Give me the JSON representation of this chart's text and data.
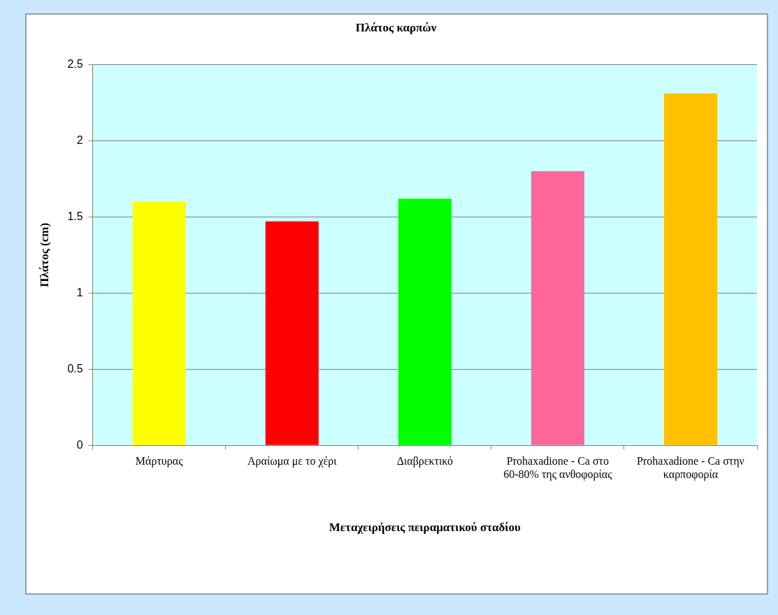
{
  "chart_data": {
    "type": "bar",
    "title": "Πλάτος καρπών",
    "xlabel": "Μεταχειρήσεις πειραματικού σταδίου",
    "ylabel": "Πλάτος (cm)",
    "categories": [
      "Μάρτυρας",
      "Αραίωμα με το χέρι",
      "Διαβρεκτικό",
      "Prohaxadione - Ca στο 60-80% της ανθοφορίας",
      "Prohaxadione - Ca στην καρποφορία"
    ],
    "values": [
      1.6,
      1.47,
      1.62,
      1.8,
      2.31
    ],
    "colors": [
      "#ffff00",
      "#ff0000",
      "#00ff00",
      "#ff6699",
      "#ffc000"
    ],
    "ylim": [
      0,
      2.5
    ],
    "yticks": [
      0,
      0.5,
      1,
      1.5,
      2,
      2.5
    ],
    "grid": "y",
    "legend": false
  }
}
